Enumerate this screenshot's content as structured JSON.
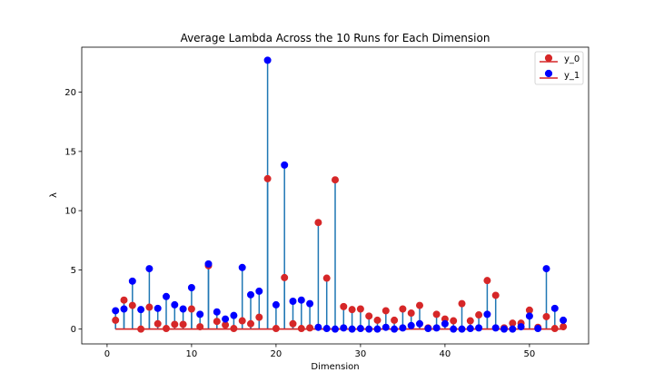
{
  "chart_data": {
    "type": "stem",
    "title": "Average Lambda Across the 10 Runs for Each Dimension",
    "xlabel": "Dimension",
    "ylabel": "λ",
    "xlim": [
      -3,
      57
    ],
    "ylim": [
      -1.25,
      23.8
    ],
    "xticks": [
      0,
      10,
      20,
      30,
      40,
      50
    ],
    "yticks": [
      0,
      5,
      10,
      15,
      20
    ],
    "baseline_color": "#d62728",
    "stem_color": "#1f77b4",
    "legend_position": "top-right",
    "x": [
      1,
      2,
      3,
      4,
      5,
      6,
      7,
      8,
      9,
      10,
      11,
      12,
      13,
      14,
      15,
      16,
      17,
      18,
      19,
      20,
      21,
      22,
      23,
      24,
      25,
      26,
      27,
      28,
      29,
      30,
      31,
      32,
      33,
      34,
      35,
      36,
      37,
      38,
      39,
      40,
      41,
      42,
      43,
      44,
      45,
      46,
      47,
      48,
      49,
      50,
      51,
      52,
      53,
      54
    ],
    "series": [
      {
        "name": "y_0",
        "color": "#d62728",
        "values": [
          0.75,
          2.45,
          2.0,
          0.0,
          1.85,
          0.45,
          0.05,
          0.4,
          0.4,
          1.7,
          0.2,
          5.35,
          0.65,
          0.35,
          0.05,
          0.7,
          0.45,
          1.0,
          12.7,
          0.05,
          4.35,
          0.45,
          0.05,
          0.1,
          9.0,
          4.3,
          12.6,
          1.9,
          1.65,
          1.7,
          1.1,
          0.75,
          1.55,
          0.75,
          1.7,
          1.35,
          2.0,
          0.1,
          1.25,
          0.85,
          0.7,
          2.15,
          0.7,
          1.2,
          4.1,
          2.85,
          0.1,
          0.5,
          0.5,
          1.6,
          0.15,
          1.05,
          0.05,
          0.2
        ]
      },
      {
        "name": "y_1",
        "color": "#0000ff",
        "values": [
          1.55,
          1.7,
          4.05,
          1.65,
          5.1,
          1.75,
          2.75,
          2.05,
          1.7,
          3.5,
          1.25,
          5.5,
          1.45,
          0.85,
          1.15,
          5.2,
          2.9,
          3.2,
          22.7,
          2.05,
          13.85,
          2.35,
          2.45,
          2.15,
          0.15,
          0.05,
          0.0,
          0.1,
          0.0,
          0.05,
          0.0,
          0.0,
          0.15,
          0.0,
          0.1,
          0.3,
          0.45,
          0.05,
          0.1,
          0.45,
          0.0,
          0.0,
          0.05,
          0.1,
          1.25,
          0.1,
          0.0,
          0.0,
          0.2,
          1.1,
          0.05,
          5.1,
          1.75,
          0.75
        ]
      }
    ]
  }
}
